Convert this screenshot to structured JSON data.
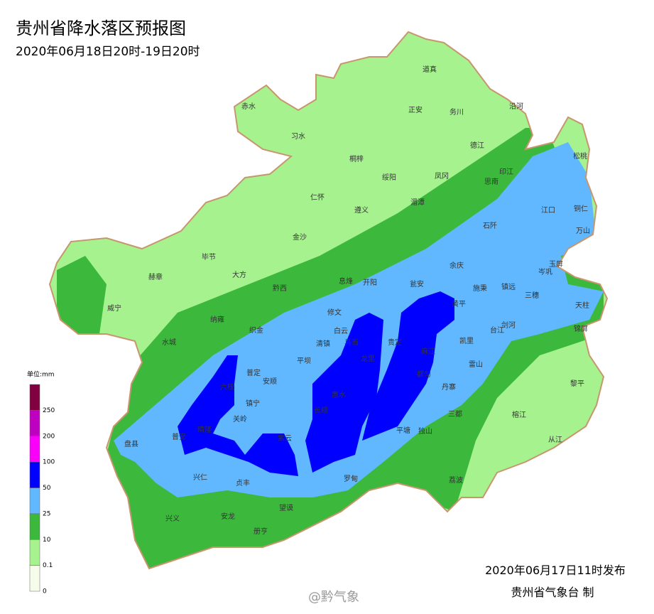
{
  "title": "贵州省降水落区预报图",
  "subtitle": "2020年06月18日20时-19日20时",
  "legend": {
    "unit": "单位:mm",
    "ticks": [
      0,
      0.1,
      10,
      25,
      50,
      100,
      200,
      250
    ],
    "colors": [
      "#f7fcea",
      "#a6f28f",
      "#3cb93c",
      "#61b8ff",
      "#0000fe",
      "#fa00fa",
      "#c000c0",
      "#800040"
    ]
  },
  "places": [
    "赤水",
    "习水",
    "道真",
    "正安",
    "务川",
    "沿河",
    "桐梓",
    "绥阳",
    "凤冈",
    "德江",
    "印江",
    "思南",
    "松桃",
    "仁怀",
    "遵义",
    "湄潭",
    "江口",
    "铜仁",
    "石阡",
    "万山",
    "金沙",
    "毕节",
    "大方",
    "赫章",
    "玉屏",
    "余庆",
    "岑巩",
    "息烽",
    "开阳",
    "瓮安",
    "施秉",
    "镇远",
    "三穗",
    "黔西",
    "天柱",
    "威宁",
    "修文",
    "黄平",
    "纳雍",
    "织金",
    "白云",
    "台江",
    "剑河",
    "锦屏",
    "清镇",
    "水城",
    "乌当",
    "龙里",
    "贵定",
    "凯里",
    "麻江",
    "平坝",
    "雷山",
    "普定",
    "安顺",
    "都匀",
    "丹寨",
    "黎平",
    "六枝",
    "惠水",
    "镇宁",
    "长顺",
    "三都",
    "关岭",
    "榕江",
    "晴隆",
    "普安",
    "平塘",
    "独山",
    "紫云",
    "从江",
    "盘县",
    "兴仁",
    "贞丰",
    "罗甸",
    "荔波",
    "望谟",
    "兴义",
    "安龙",
    "册亨"
  ],
  "issued": "2020年06月17日11时发布",
  "agency": "贵州省气象台 制",
  "watermark": "@黔气象"
}
